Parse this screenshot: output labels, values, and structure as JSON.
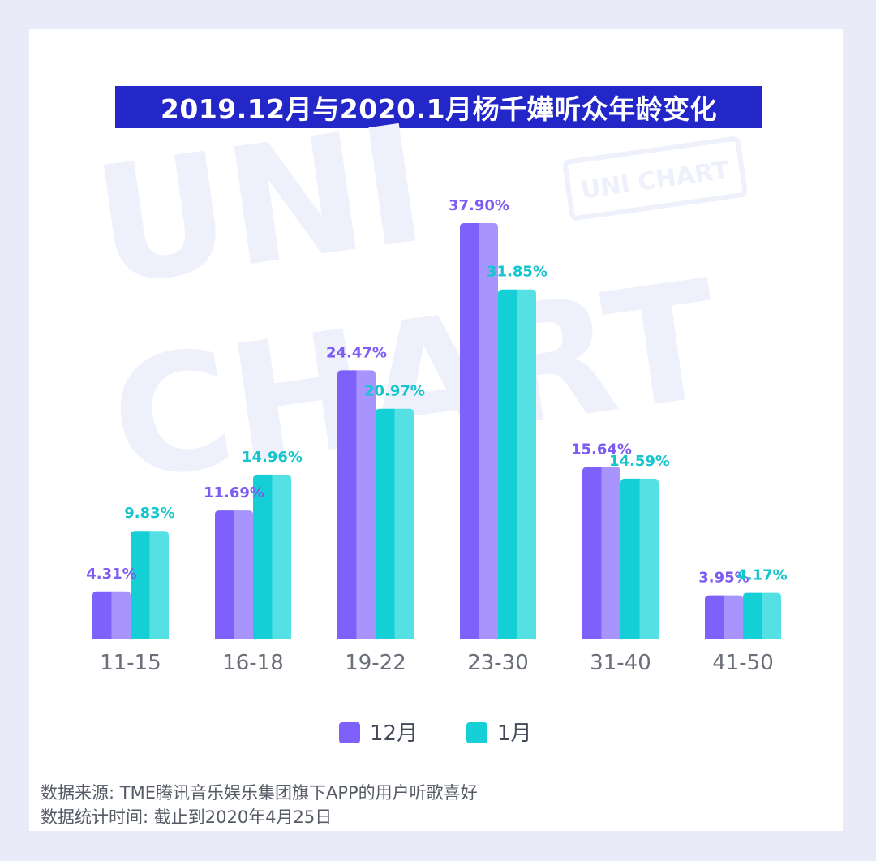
{
  "title": "2019.12月与2020.1月杨千嬅听众年龄变化",
  "watermark": {
    "big_line1": "UNI",
    "big_line2": "CHART",
    "stamp": "UNI CHART"
  },
  "colors": {
    "dec_dark": "#7e61fb",
    "dec_light": "#a795fd",
    "dec_label": "#7c5cf2",
    "jan_dark": "#15cfd6",
    "jan_light": "#55e0e4",
    "jan_label": "#14c6cc",
    "title_bg": "#2427c8",
    "axis_text": "#6b6f7a",
    "watermark": "#eef0fb"
  },
  "chart_data": {
    "type": "bar",
    "title": "2019.12月与2020.1月杨千嬅听众年龄变化",
    "categories": [
      "11-15",
      "16-18",
      "19-22",
      "23-30",
      "31-40",
      "41-50"
    ],
    "series": [
      {
        "name": "12月",
        "values": [
          4.31,
          11.69,
          24.47,
          37.9,
          15.64,
          3.95
        ],
        "labels": [
          "4.31%",
          "11.69%",
          "24.47%",
          "37.90%",
          "15.64%",
          "3.95%"
        ]
      },
      {
        "name": "1月",
        "values": [
          9.83,
          14.96,
          20.97,
          31.85,
          14.59,
          4.17
        ],
        "labels": [
          "9.83%",
          "14.96%",
          "20.97%",
          "31.85%",
          "14.59%",
          "4.17%"
        ]
      }
    ],
    "unit": "%",
    "ylim": [
      0,
      40
    ],
    "grid": false,
    "legend_position": "bottom-center"
  },
  "legend": [
    {
      "label": "12月",
      "color_key": "dec_dark"
    },
    {
      "label": "1月",
      "color_key": "jan_dark"
    }
  ],
  "footer": {
    "source": "数据来源: TME腾讯音乐娱乐集团旗下APP的用户听歌喜好",
    "period": "数据统计时间: 截止到2020年4月25日"
  }
}
